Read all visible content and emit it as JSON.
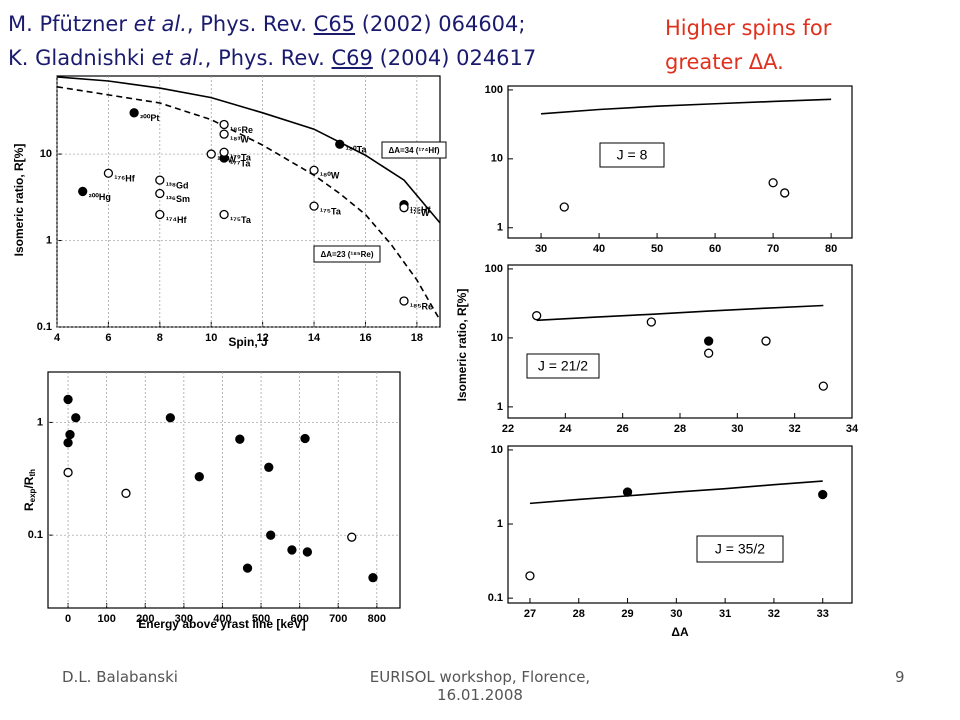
{
  "header": {
    "lines": [
      {
        "author": "M. Pfützner",
        "etal": "et al.",
        "journal": ", Phys. Rev.",
        "volume": "C65",
        "rest": "(2002) 064604;"
      },
      {
        "author": "K. Gladnishki",
        "etal": "et al.",
        "journal": ", Phys. Rev.",
        "volume": "C69",
        "rest": "(2004) 024617"
      }
    ]
  },
  "note": [
    "Higher spins for",
    "greater ΔA."
  ],
  "footer": {
    "left": "D.L. Balabanski",
    "center": [
      "EURISOL workshop, Florence,",
      "16.01.2008"
    ],
    "page": "9"
  },
  "chart_data": [
    {
      "type": "scatter",
      "xlabel": "Spin, J",
      "ylabel": "Isomeric ratio, R[%]",
      "ylog": true,
      "grid": true,
      "xlim": [
        4,
        18.9
      ],
      "ylim": [
        0.1,
        80
      ],
      "xticks": [
        4,
        6,
        8,
        10,
        12,
        14,
        16,
        18
      ],
      "yticks": [
        0.1,
        1,
        10
      ],
      "annotations": [
        "ΔA=34 (¹⁷⁴Hf)",
        "ΔA=23 (¹⁸⁵Re)"
      ],
      "series": [
        {
          "kind": "line",
          "dash": false,
          "color": "#000000",
          "x": [
            4,
            6,
            8,
            10,
            12,
            14,
            16,
            17.5,
            18.9
          ],
          "values": [
            78,
            70,
            58,
            45,
            30,
            19.4,
            9.7,
            5,
            1.6
          ]
        },
        {
          "kind": "line",
          "dash": true,
          "color": "#000000",
          "x": [
            4,
            8,
            10,
            12,
            14,
            15,
            16,
            17,
            18,
            18.9
          ],
          "values": [
            60,
            39,
            25,
            12.7,
            5.7,
            3.5,
            2,
            0.9,
            0.35,
            0.12
          ]
        },
        {
          "kind": "points",
          "marker": "filled",
          "color": "#000000",
          "x": [
            5,
            7,
            10.5,
            15,
            17.5
          ],
          "values": [
            3.7,
            30,
            9,
            13,
            2.6
          ],
          "point_labels": [
            "²⁰⁰Hg",
            "²⁰⁰Pt",
            "¹⁷⁷Ta",
            "¹⁸⁰Ta",
            "¹⁷⁵Hf"
          ]
        },
        {
          "kind": "points",
          "marker": "open",
          "color": "#000000",
          "x": [
            6,
            8,
            8,
            8,
            10,
            10.5,
            10.5,
            10.5,
            10.5,
            14,
            14,
            17.5,
            17.5
          ],
          "values": [
            6,
            5,
            3.5,
            2,
            10,
            22,
            17,
            10.5,
            2,
            6.5,
            2.5,
            2.4,
            0.2
          ],
          "point_labels": [
            "¹⁷⁶Hf",
            "¹³⁸Gd",
            "¹³⁶Sm",
            "¹⁷⁴Hf",
            "¹⁸²W",
            "¹⁸⁵Re",
            "¹⁸³W",
            "¹⁷⁹Ta",
            "¹⁷⁵Ta",
            "¹⁸⁰W",
            "¹⁷⁵Ta",
            "¹⁷⁵W",
            "¹⁸⁵Re"
          ]
        }
      ]
    },
    {
      "type": "scatter",
      "xlabel": "Energy above yrast line [keV]",
      "ylabel": [
        "R",
        "exp",
        "/R",
        "th"
      ],
      "ylog": true,
      "grid": true,
      "xlim": [
        -52,
        860
      ],
      "ylim": [
        0.0226,
        2.8
      ],
      "xticks": [
        0,
        100,
        200,
        300,
        400,
        500,
        600,
        700,
        800
      ],
      "yticks": [
        0.1,
        1
      ],
      "series": [
        {
          "kind": "points",
          "marker": "filled",
          "color": "#000000",
          "x": [
            0,
            0,
            5,
            20,
            265,
            340,
            445,
            465,
            520,
            525,
            580,
            614,
            620,
            790
          ],
          "values": [
            0.66,
            1.6,
            0.78,
            1.1,
            1.1,
            0.33,
            0.71,
            0.051,
            0.4,
            0.1,
            0.074,
            0.72,
            0.071,
            0.042
          ]
        },
        {
          "kind": "points",
          "marker": "open",
          "color": "#000000",
          "x": [
            0,
            150,
            735
          ],
          "values": [
            0.36,
            0.235,
            0.096
          ]
        }
      ]
    },
    {
      "type": "scatter",
      "ylog": true,
      "grid": false,
      "xlim": [
        24.3,
        83.6
      ],
      "ylim": [
        0.71,
        114
      ],
      "xticks": [
        30,
        40,
        50,
        60,
        70,
        80
      ],
      "yticks": [
        1,
        10,
        100
      ],
      "annotations": [
        "J = 8"
      ],
      "series": [
        {
          "kind": "line",
          "dash": false,
          "color": "#000000",
          "x": [
            30,
            40,
            50,
            60,
            70,
            80
          ],
          "values": [
            45,
            52,
            58,
            63,
            68,
            73
          ]
        },
        {
          "kind": "points",
          "marker": "open",
          "color": "#000000",
          "x": [
            34,
            70,
            72
          ],
          "values": [
            2,
            4.5,
            3.2
          ]
        }
      ]
    },
    {
      "type": "scatter",
      "ylabel": "Isomeric ratio, R[%]",
      "ylog": true,
      "grid": false,
      "xlim": [
        22,
        34
      ],
      "ylim": [
        0.69,
        114
      ],
      "xticks": [
        22,
        24,
        26,
        28,
        30,
        32,
        34
      ],
      "yticks": [
        1,
        10,
        100
      ],
      "annotations": [
        "J = 21/2"
      ],
      "series": [
        {
          "kind": "line",
          "dash": false,
          "color": "#000000",
          "x": [
            23,
            25,
            27,
            29,
            31,
            33
          ],
          "values": [
            18,
            20,
            22,
            24.5,
            27,
            29.5
          ]
        },
        {
          "kind": "points",
          "marker": "filled",
          "color": "#000000",
          "x": [
            29
          ],
          "values": [
            9
          ]
        },
        {
          "kind": "points",
          "marker": "open",
          "color": "#000000",
          "x": [
            23,
            27,
            29,
            31,
            33
          ],
          "values": [
            21,
            17,
            6,
            9,
            2
          ]
        }
      ]
    },
    {
      "type": "scatter",
      "xlabel": "ΔA",
      "ylog": true,
      "grid": false,
      "xlim": [
        26.55,
        33.6
      ],
      "ylim": [
        0.086,
        11.3
      ],
      "xticks": [
        27,
        28,
        29,
        30,
        31,
        32,
        33
      ],
      "yticks": [
        0.1,
        1,
        10
      ],
      "annotations": [
        "J = 35/2"
      ],
      "series": [
        {
          "kind": "line",
          "dash": false,
          "color": "#000000",
          "x": [
            27,
            28,
            29,
            30,
            31,
            32,
            33
          ],
          "values": [
            1.9,
            2.15,
            2.4,
            2.7,
            3.0,
            3.4,
            3.8
          ]
        },
        {
          "kind": "points",
          "marker": "filled",
          "color": "#000000",
          "x": [
            29,
            33
          ],
          "values": [
            2.7,
            2.5
          ]
        },
        {
          "kind": "points",
          "marker": "open",
          "color": "#000000",
          "x": [
            27
          ],
          "values": [
            0.2
          ]
        }
      ]
    }
  ]
}
